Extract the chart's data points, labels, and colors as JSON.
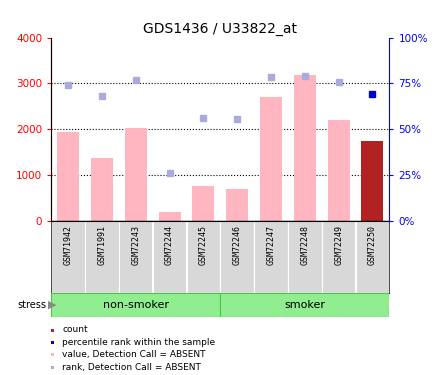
{
  "title": "GDS1436 / U33822_at",
  "samples": [
    "GSM71942",
    "GSM71991",
    "GSM72243",
    "GSM72244",
    "GSM72245",
    "GSM72246",
    "GSM72247",
    "GSM72248",
    "GSM72249",
    "GSM72250"
  ],
  "bar_values": [
    1950,
    1380,
    2020,
    200,
    760,
    700,
    2700,
    3180,
    2200,
    1740
  ],
  "bar_absent": [
    true,
    true,
    true,
    true,
    true,
    true,
    true,
    true,
    true,
    false
  ],
  "rank_values": [
    2960,
    2730,
    3070,
    1060,
    2240,
    2230,
    3150,
    3160,
    3030,
    2780
  ],
  "rank_absent": [
    true,
    true,
    true,
    true,
    true,
    true,
    true,
    true,
    true,
    false
  ],
  "ylim_left": [
    0,
    4000
  ],
  "yticks_left": [
    0,
    1000,
    2000,
    3000,
    4000
  ],
  "ytick_labels_left": [
    "0",
    "1000",
    "2000",
    "3000",
    "4000"
  ],
  "yticks_right": [
    0,
    25,
    50,
    75,
    100
  ],
  "ytick_labels_right": [
    "0%",
    "25%",
    "50%",
    "75%",
    "100%"
  ],
  "color_bar_absent": "#FFB6C1",
  "color_bar_present": "#B22222",
  "color_rank_absent": "#AAAADD",
  "color_rank_present": "#0000CC",
  "group_label_nonsmoker": "non-smoker",
  "group_label_smoker": "smoker",
  "stress_label": "stress",
  "green_light": "#90EE90",
  "green_dark": "#44CC44",
  "legend_items": [
    {
      "label": "count",
      "color": "#B22222"
    },
    {
      "label": "percentile rank within the sample",
      "color": "#0000CC"
    },
    {
      "label": "value, Detection Call = ABSENT",
      "color": "#FFB6C1"
    },
    {
      "label": "rank, Detection Call = ABSENT",
      "color": "#AAAADD"
    }
  ]
}
